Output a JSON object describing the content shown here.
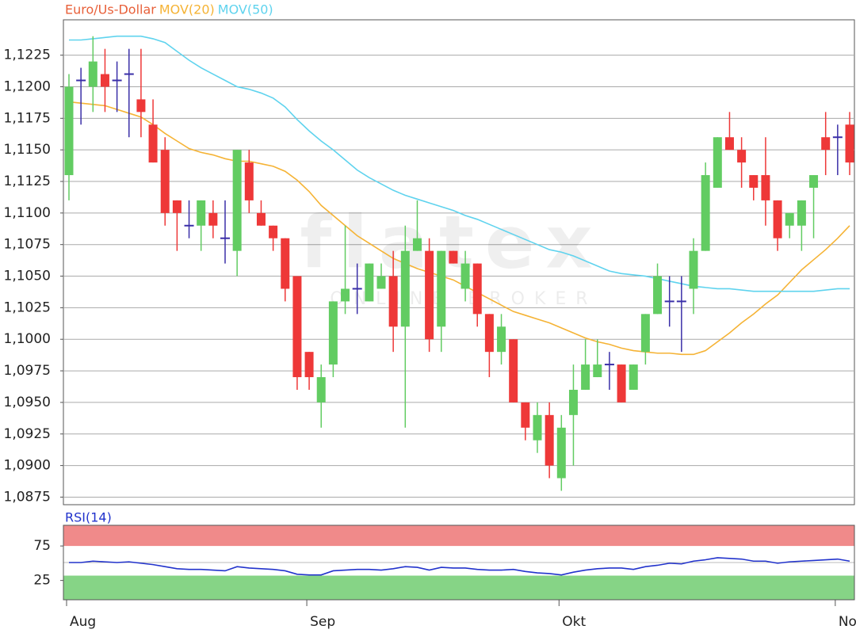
{
  "chart_data": [
    {
      "type": "candlestick",
      "categories": [
        "Aug",
        null,
        null,
        null,
        null,
        null,
        null,
        null,
        null,
        null,
        null,
        null,
        null,
        null,
        null,
        null,
        null,
        null,
        null,
        null,
        "Sep",
        null,
        null,
        null,
        null,
        null,
        null,
        null,
        null,
        null,
        null,
        null,
        null,
        null,
        null,
        null,
        null,
        null,
        null,
        null,
        null,
        "Okt",
        null,
        null,
        null,
        null,
        null,
        null,
        null,
        null,
        null,
        null,
        null,
        null,
        null,
        null,
        null,
        null,
        null,
        null,
        null,
        null,
        null,
        null,
        "No",
        null
      ],
      "series": [
        {
          "name": "Euro/Us-Dollar",
          "color": "#e8603a",
          "up_color": "#62cc62",
          "down_color": "#ee3838",
          "doji_color": "#3a2fa8",
          "open": [
            1.113,
            1.1205,
            1.12,
            1.121,
            1.1205,
            1.121,
            1.119,
            1.117,
            1.115,
            1.111,
            1.109,
            1.109,
            1.11,
            1.108,
            1.107,
            1.114,
            1.11,
            1.109,
            1.108,
            1.105,
            1.099,
            1.095,
            1.098,
            1.103,
            1.104,
            1.103,
            1.104,
            1.105,
            1.101,
            1.107,
            1.107,
            1.101,
            1.107,
            1.104,
            1.106,
            1.102,
            1.099,
            1.1,
            1.095,
            1.092,
            1.094,
            1.089,
            1.094,
            1.096,
            1.097,
            1.098,
            1.098,
            1.096,
            1.099,
            1.102,
            1.103,
            1.103,
            1.104,
            1.107,
            1.112,
            1.116,
            1.115,
            1.113,
            1.113,
            1.111,
            1.109,
            1.109,
            1.112,
            1.116,
            1.116,
            1.117
          ],
          "high": [
            1.121,
            1.1215,
            1.124,
            1.123,
            1.122,
            1.123,
            1.123,
            1.119,
            1.116,
            1.111,
            1.111,
            1.111,
            1.111,
            1.111,
            1.115,
            1.115,
            1.111,
            1.109,
            1.108,
            1.105,
            1.099,
            1.098,
            1.103,
            1.109,
            1.106,
            1.106,
            1.106,
            1.107,
            1.109,
            1.111,
            1.108,
            1.107,
            1.107,
            1.107,
            1.106,
            1.102,
            1.102,
            1.1,
            1.095,
            1.095,
            1.095,
            1.094,
            1.098,
            1.1,
            1.1,
            1.099,
            1.098,
            1.098,
            1.102,
            1.106,
            1.105,
            1.105,
            1.108,
            1.114,
            1.116,
            1.118,
            1.116,
            1.113,
            1.116,
            1.111,
            1.11,
            1.111,
            1.113,
            1.118,
            1.117,
            1.118
          ],
          "low": [
            1.111,
            1.117,
            1.118,
            1.118,
            1.118,
            1.116,
            1.116,
            1.114,
            1.109,
            1.107,
            1.108,
            1.107,
            1.108,
            1.106,
            1.105,
            1.11,
            1.109,
            1.107,
            1.103,
            1.096,
            1.096,
            1.093,
            1.097,
            1.102,
            1.102,
            1.103,
            1.104,
            1.099,
            1.093,
            1.107,
            1.099,
            1.099,
            1.106,
            1.103,
            1.101,
            1.097,
            1.098,
            1.095,
            1.092,
            1.091,
            1.089,
            1.088,
            1.09,
            1.096,
            1.097,
            1.096,
            1.095,
            1.096,
            1.098,
            1.102,
            1.101,
            1.099,
            1.102,
            1.107,
            1.112,
            1.115,
            1.112,
            1.111,
            1.109,
            1.107,
            1.108,
            1.107,
            1.108,
            1.113,
            1.113,
            1.113
          ],
          "close": [
            1.12,
            1.1205,
            1.122,
            1.12,
            1.1205,
            1.121,
            1.118,
            1.114,
            1.11,
            1.11,
            1.109,
            1.111,
            1.109,
            1.108,
            1.115,
            1.111,
            1.109,
            1.108,
            1.104,
            1.097,
            1.097,
            1.097,
            1.103,
            1.104,
            1.104,
            1.106,
            1.105,
            1.101,
            1.107,
            1.108,
            1.1,
            1.107,
            1.106,
            1.106,
            1.102,
            1.099,
            1.101,
            1.095,
            1.093,
            1.094,
            1.09,
            1.093,
            1.096,
            1.098,
            1.098,
            1.098,
            1.095,
            1.098,
            1.102,
            1.105,
            1.103,
            1.103,
            1.107,
            1.113,
            1.116,
            1.115,
            1.114,
            1.112,
            1.111,
            1.108,
            1.11,
            1.111,
            1.113,
            1.115,
            1.116,
            1.114
          ]
        },
        {
          "name": "MOV(20)",
          "color": "#f5b335",
          "values": [
            1.1188,
            1.1187,
            1.1186,
            1.1185,
            1.1182,
            1.1179,
            1.1176,
            1.117,
            1.1163,
            1.1157,
            1.1151,
            1.1148,
            1.1146,
            1.1143,
            1.1141,
            1.1141,
            1.1139,
            1.1137,
            1.1133,
            1.1126,
            1.1117,
            1.1106,
            1.1098,
            1.109,
            1.1082,
            1.1076,
            1.107,
            1.1064,
            1.106,
            1.1056,
            1.1053,
            1.105,
            1.1047,
            1.1042,
            1.1037,
            1.1032,
            1.1027,
            1.1022,
            1.1019,
            1.1016,
            1.1013,
            1.1009,
            1.1005,
            1.1001,
            1.0998,
            1.0996,
            1.0993,
            1.0991,
            1.099,
            1.0989,
            1.0989,
            1.0988,
            1.0988,
            1.0991,
            1.0998,
            1.1005,
            1.1013,
            1.102,
            1.1028,
            1.1035,
            1.1045,
            1.1055,
            1.1063,
            1.1071,
            1.108,
            1.109
          ]
        },
        {
          "name": "MOV(50)",
          "color": "#5fd3ee",
          "values": [
            1.1237,
            1.1237,
            1.1238,
            1.1239,
            1.124,
            1.124,
            1.124,
            1.1238,
            1.1235,
            1.1228,
            1.1221,
            1.1215,
            1.121,
            1.1205,
            1.12,
            1.1198,
            1.1195,
            1.1191,
            1.1184,
            1.1174,
            1.1165,
            1.1157,
            1.115,
            1.1142,
            1.1134,
            1.1128,
            1.1123,
            1.1118,
            1.1114,
            1.1111,
            1.1108,
            1.1105,
            1.1102,
            1.1098,
            1.1095,
            1.1091,
            1.1087,
            1.1083,
            1.1079,
            1.1075,
            1.1071,
            1.1069,
            1.1066,
            1.1062,
            1.1058,
            1.1054,
            1.1052,
            1.1051,
            1.105,
            1.1048,
            1.1046,
            1.1044,
            1.1042,
            1.1041,
            1.104,
            1.104,
            1.1039,
            1.1038,
            1.1038,
            1.1038,
            1.1038,
            1.1038,
            1.1038,
            1.1039,
            1.104,
            1.104
          ]
        }
      ],
      "ylim": [
        1.0869,
        1.1253
      ],
      "yticks": [
        {
          "value": 1.0875,
          "label": "1,0875"
        },
        {
          "value": 1.09,
          "label": "1,0900"
        },
        {
          "value": 1.0925,
          "label": "1,0925"
        },
        {
          "value": 1.095,
          "label": "1,0950"
        },
        {
          "value": 1.0975,
          "label": "1,0975"
        },
        {
          "value": 1.1,
          "label": "1,1000"
        },
        {
          "value": 1.1025,
          "label": "1,1025"
        },
        {
          "value": 1.105,
          "label": "1,1050"
        },
        {
          "value": 1.1075,
          "label": "1,1075"
        },
        {
          "value": 1.11,
          "label": "1,1100"
        },
        {
          "value": 1.1125,
          "label": "1,1125"
        },
        {
          "value": 1.115,
          "label": "1,1150"
        },
        {
          "value": 1.1175,
          "label": "1,1175"
        },
        {
          "value": 1.12,
          "label": "1,1200"
        },
        {
          "value": 1.1225,
          "label": "1,1225"
        }
      ],
      "grid": true,
      "watermark": "flatex",
      "watermark_sub": "ONLINE BROKER"
    },
    {
      "type": "line",
      "title": "RSI(14)",
      "color": "#2233cc",
      "values": [
        51,
        51,
        53,
        52,
        51,
        52,
        50,
        48,
        45,
        42,
        41,
        41,
        40,
        39,
        45,
        43,
        42,
        41,
        39,
        34,
        33,
        33,
        39,
        40,
        41,
        41,
        40,
        42,
        45,
        44,
        40,
        44,
        43,
        43,
        41,
        40,
        40,
        41,
        38,
        36,
        35,
        33,
        37,
        40,
        42,
        43,
        43,
        41,
        45,
        47,
        50,
        49,
        53,
        55,
        58,
        57,
        56,
        53,
        53,
        50,
        52,
        53,
        54,
        55,
        56,
        53
      ],
      "ylim": [
        -3,
        105
      ],
      "yticks": [
        25,
        75
      ],
      "bands": [
        {
          "from": 75,
          "to": 105,
          "color": "#f08a8a"
        },
        {
          "from": -3,
          "to": 32,
          "color": "#86d486"
        }
      ]
    }
  ]
}
